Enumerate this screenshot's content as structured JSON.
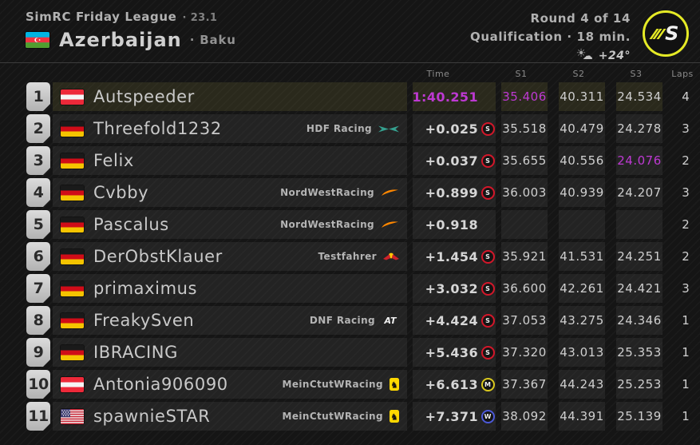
{
  "header": {
    "league": "SimRC Friday League",
    "version_label": "· 23.1",
    "country": "Azerbaijan",
    "city_label": "· Baku",
    "round": "Round 4 of 14",
    "session": "Qualification · 18 min.",
    "temperature": "+24°",
    "logo_letter": "S"
  },
  "colors": {
    "accent_fastest": "#bd39d2",
    "tyre_soft": "#d3172a",
    "tyre_medium": "#d9c81f",
    "tyre_wet": "#4c59d8",
    "logo_ring": "#e5ea26",
    "leader_row_tint": "#2a291c"
  },
  "table": {
    "columns": [
      "Time",
      "S1",
      "S2",
      "S3",
      "Laps"
    ],
    "rows": [
      {
        "pos": "1",
        "country": "at",
        "name": "Autspeeder",
        "team": "",
        "team_logo": "",
        "time": "1:40.251",
        "time_best": true,
        "tyre": "",
        "s1": "35.406",
        "s1_best": true,
        "s2": "40.311",
        "s3": "24.534",
        "laps": "4",
        "highlight": true
      },
      {
        "pos": "2",
        "country": "de",
        "name": "Threefold1232",
        "team": "HDF Racing",
        "team_logo": "aston-martin",
        "time": "+0.025",
        "tyre": "S",
        "s1": "35.518",
        "s2": "40.479",
        "s3": "24.278",
        "laps": "3"
      },
      {
        "pos": "3",
        "country": "de",
        "name": "Felix",
        "team": "",
        "team_logo": "",
        "time": "+0.037",
        "tyre": "S",
        "s1": "35.655",
        "s2": "40.556",
        "s3": "24.076",
        "s3_best": true,
        "laps": "2"
      },
      {
        "pos": "4",
        "country": "de",
        "name": "Cvbby",
        "team": "NordWestRacing",
        "team_logo": "mclaren",
        "time": "+0.899",
        "tyre": "S",
        "s1": "36.003",
        "s2": "40.939",
        "s3": "24.207",
        "laps": "3"
      },
      {
        "pos": "5",
        "country": "de",
        "name": "Pascalus",
        "team": "NordWestRacing",
        "team_logo": "mclaren",
        "time": "+0.918",
        "tyre": "",
        "s1": "",
        "s2": "",
        "s3": "",
        "laps": "2"
      },
      {
        "pos": "6",
        "country": "de",
        "name": "DerObstKlauer",
        "team": "Testfahrer",
        "team_logo": "red-bull",
        "time": "+1.454",
        "tyre": "S",
        "s1": "35.921",
        "s2": "41.531",
        "s3": "24.251",
        "laps": "2"
      },
      {
        "pos": "7",
        "country": "de",
        "name": "primaximus",
        "team": "",
        "team_logo": "",
        "time": "+3.032",
        "tyre": "S",
        "s1": "36.600",
        "s2": "42.261",
        "s3": "24.421",
        "laps": "3"
      },
      {
        "pos": "8",
        "country": "de",
        "name": "FreakySven",
        "team": "DNF Racing",
        "team_logo": "alphatauri",
        "time": "+4.424",
        "tyre": "S",
        "s1": "37.053",
        "s2": "43.275",
        "s3": "24.346",
        "laps": "1"
      },
      {
        "pos": "9",
        "country": "de",
        "name": "IBRACING",
        "team": "",
        "team_logo": "",
        "time": "+5.436",
        "tyre": "S",
        "s1": "37.320",
        "s2": "43.013",
        "s3": "25.353",
        "laps": "1"
      },
      {
        "pos": "10",
        "country": "at",
        "name": "Antonia906090",
        "team": "MeinCtutWRacing",
        "team_logo": "ferrari",
        "time": "+6.613",
        "tyre": "M",
        "s1": "37.367",
        "s2": "44.243",
        "s3": "25.253",
        "laps": "1"
      },
      {
        "pos": "11",
        "country": "us",
        "name": "spawnieSTAR",
        "team": "MeinCtutWRacing",
        "team_logo": "ferrari",
        "time": "+7.371",
        "tyre": "W",
        "s1": "38.092",
        "s2": "44.391",
        "s3": "25.139",
        "laps": "1"
      }
    ]
  }
}
